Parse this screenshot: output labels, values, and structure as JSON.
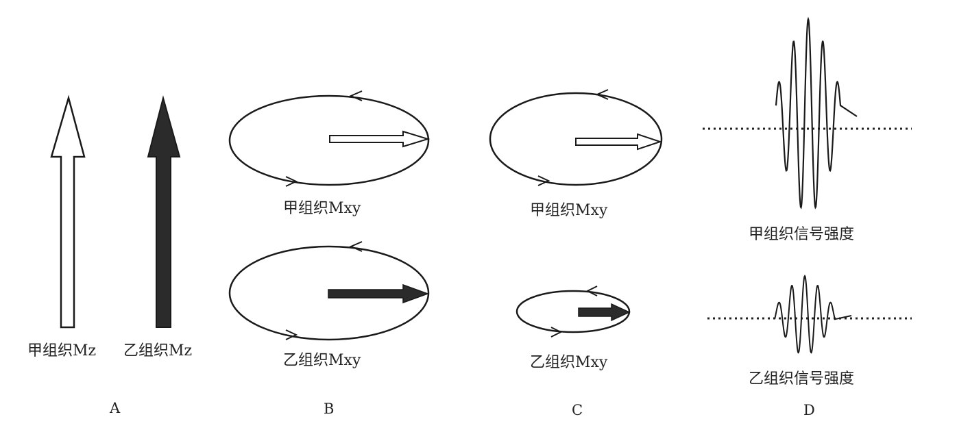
{
  "panels": {
    "A": {
      "letter": "A",
      "label_jia": "甲组织Mz",
      "label_yi": "乙组织Mz"
    },
    "B": {
      "letter": "B",
      "label_top": "甲组织Mxy",
      "label_bottom": "乙组织Mxy"
    },
    "C": {
      "letter": "C",
      "label_top": "甲组织Mxy",
      "label_bottom": "乙组织Mxy"
    },
    "D": {
      "letter": "D",
      "label_top": "甲组织信号强度",
      "label_bottom": "乙组织信号强度"
    }
  },
  "colors": {
    "stroke": "#1a1a1a",
    "fill_dark": "#2b2b2b",
    "fill_light": "#ffffff",
    "baseline": "#222222"
  }
}
